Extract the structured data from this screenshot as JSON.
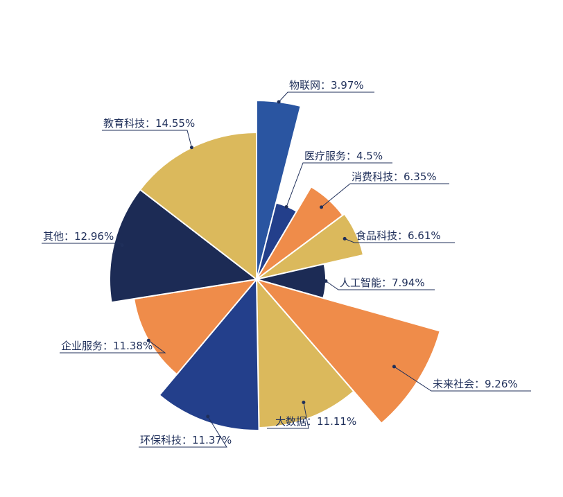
{
  "chart_data": {
    "type": "pie",
    "variant": "rose",
    "title": "",
    "series": [
      {
        "label": "物联网",
        "value": 3.97,
        "display": "3.97%",
        "color": "#2a55a1"
      },
      {
        "label": "医疗服务",
        "value": 4.5,
        "display": "4.5%",
        "color": "#233f8b"
      },
      {
        "label": "消费科技",
        "value": 6.35,
        "display": "6.35%",
        "color": "#ef8c4a"
      },
      {
        "label": "食品科技",
        "value": 6.61,
        "display": "6.61%",
        "color": "#dbb95c"
      },
      {
        "label": "人工智能",
        "value": 7.94,
        "display": "7.94%",
        "color": "#1c2b55"
      },
      {
        "label": "未来社会",
        "value": 9.26,
        "display": "9.26%",
        "color": "#ef8c4a"
      },
      {
        "label": "大数据",
        "value": 11.11,
        "display": "11.11%",
        "color": "#dbb95c"
      },
      {
        "label": "环保科技",
        "value": 11.37,
        "display": "11.37%",
        "color": "#233f8b"
      },
      {
        "label": "企业服务",
        "value": 11.38,
        "display": "11.38%",
        "color": "#ef8c4a"
      },
      {
        "label": "其他",
        "value": 12.96,
        "display": "12.96%",
        "color": "#1c2b55"
      },
      {
        "label": "教育科技",
        "value": 14.55,
        "display": "14.55%",
        "color": "#dbb95c"
      }
    ]
  }
}
